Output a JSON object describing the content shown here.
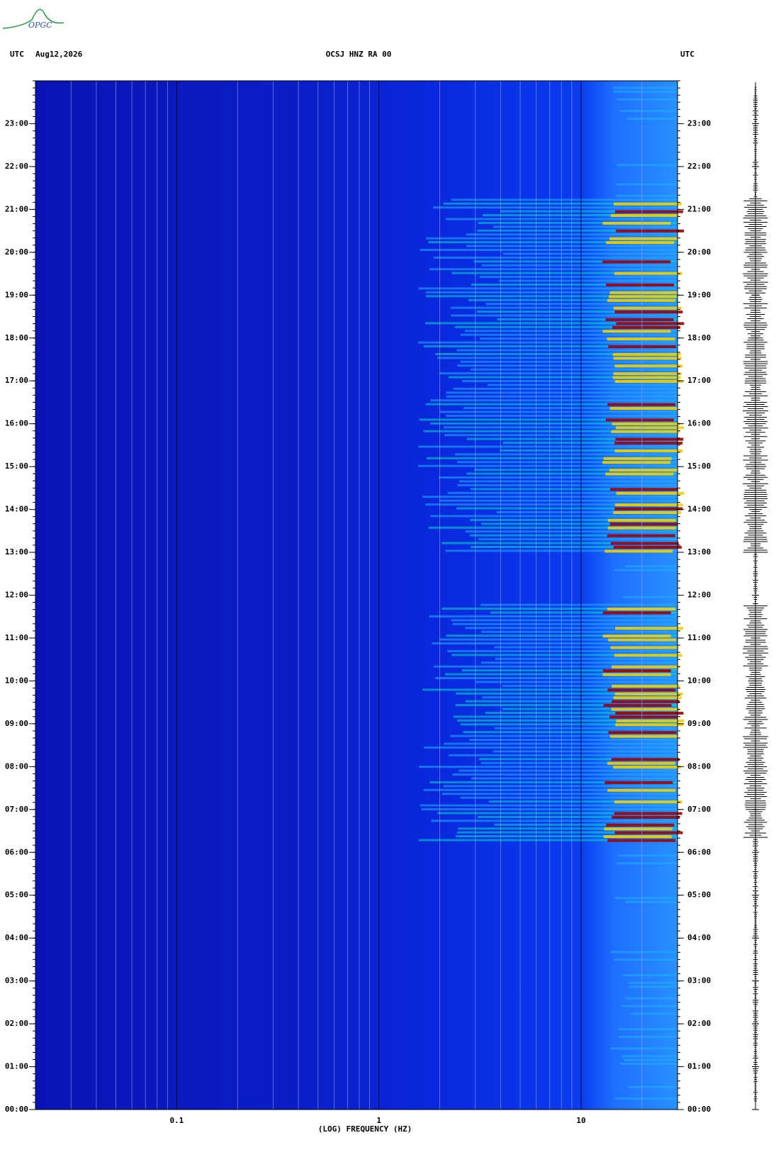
{
  "header": {
    "logo": "OPGC",
    "left_zone": "UTC",
    "date": "Aug12,2026",
    "station": "OCSJ HNZ RA 00",
    "right_zone": "UTC"
  },
  "chart_data": {
    "type": "spectrogram",
    "xlabel": "(LOG) FREQUENCY (HZ)",
    "x_scale": "log",
    "xlim": [
      0.02,
      30
    ],
    "xticks": [
      {
        "value": 0.1,
        "label": "0.1"
      },
      1,
      10
    ],
    "ylim": [
      0,
      24
    ],
    "yticks": [
      {
        "value": 0,
        "label": "00:00"
      },
      {
        "value": 1,
        "label": "01:00"
      },
      {
        "value": 2,
        "label": "02:00"
      },
      {
        "value": 3,
        "label": "03:00"
      },
      {
        "value": 4,
        "label": "04:00"
      },
      {
        "value": 5,
        "label": "05:00"
      },
      {
        "value": 6,
        "label": "06:00"
      },
      {
        "value": 7,
        "label": "07:00"
      },
      {
        "value": 8,
        "label": "08:00"
      },
      {
        "value": 9,
        "label": "09:00"
      },
      {
        "value": 10,
        "label": "10:00"
      },
      {
        "value": 11,
        "label": "11:00"
      },
      {
        "value": 12,
        "label": "12:00"
      },
      {
        "value": 13,
        "label": "13:00"
      },
      {
        "value": 14,
        "label": "14:00"
      },
      {
        "value": 15,
        "label": "15:00"
      },
      {
        "value": 16,
        "label": "16:00"
      },
      {
        "value": 17,
        "label": "17:00"
      },
      {
        "value": 18,
        "label": "18:00"
      },
      {
        "value": 19,
        "label": "19:00"
      },
      {
        "value": 20,
        "label": "20:00"
      },
      {
        "value": 21,
        "label": "21:00"
      },
      {
        "value": 22,
        "label": "22:00"
      },
      {
        "value": 23,
        "label": "23:00"
      }
    ]
  }
}
